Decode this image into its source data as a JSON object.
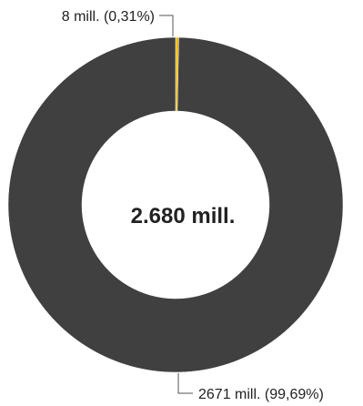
{
  "chart_data": {
    "type": "pie",
    "variant": "donut",
    "total_label": "2.680 mill.",
    "slices": [
      {
        "value": 8,
        "percent": 0.31,
        "label": "8 mill. (0,31%)",
        "color": "#F2B705"
      },
      {
        "value": 2671,
        "percent": 99.69,
        "label": "2671 mill. (99,69%)",
        "color": "#404040"
      }
    ],
    "legend": "none"
  }
}
